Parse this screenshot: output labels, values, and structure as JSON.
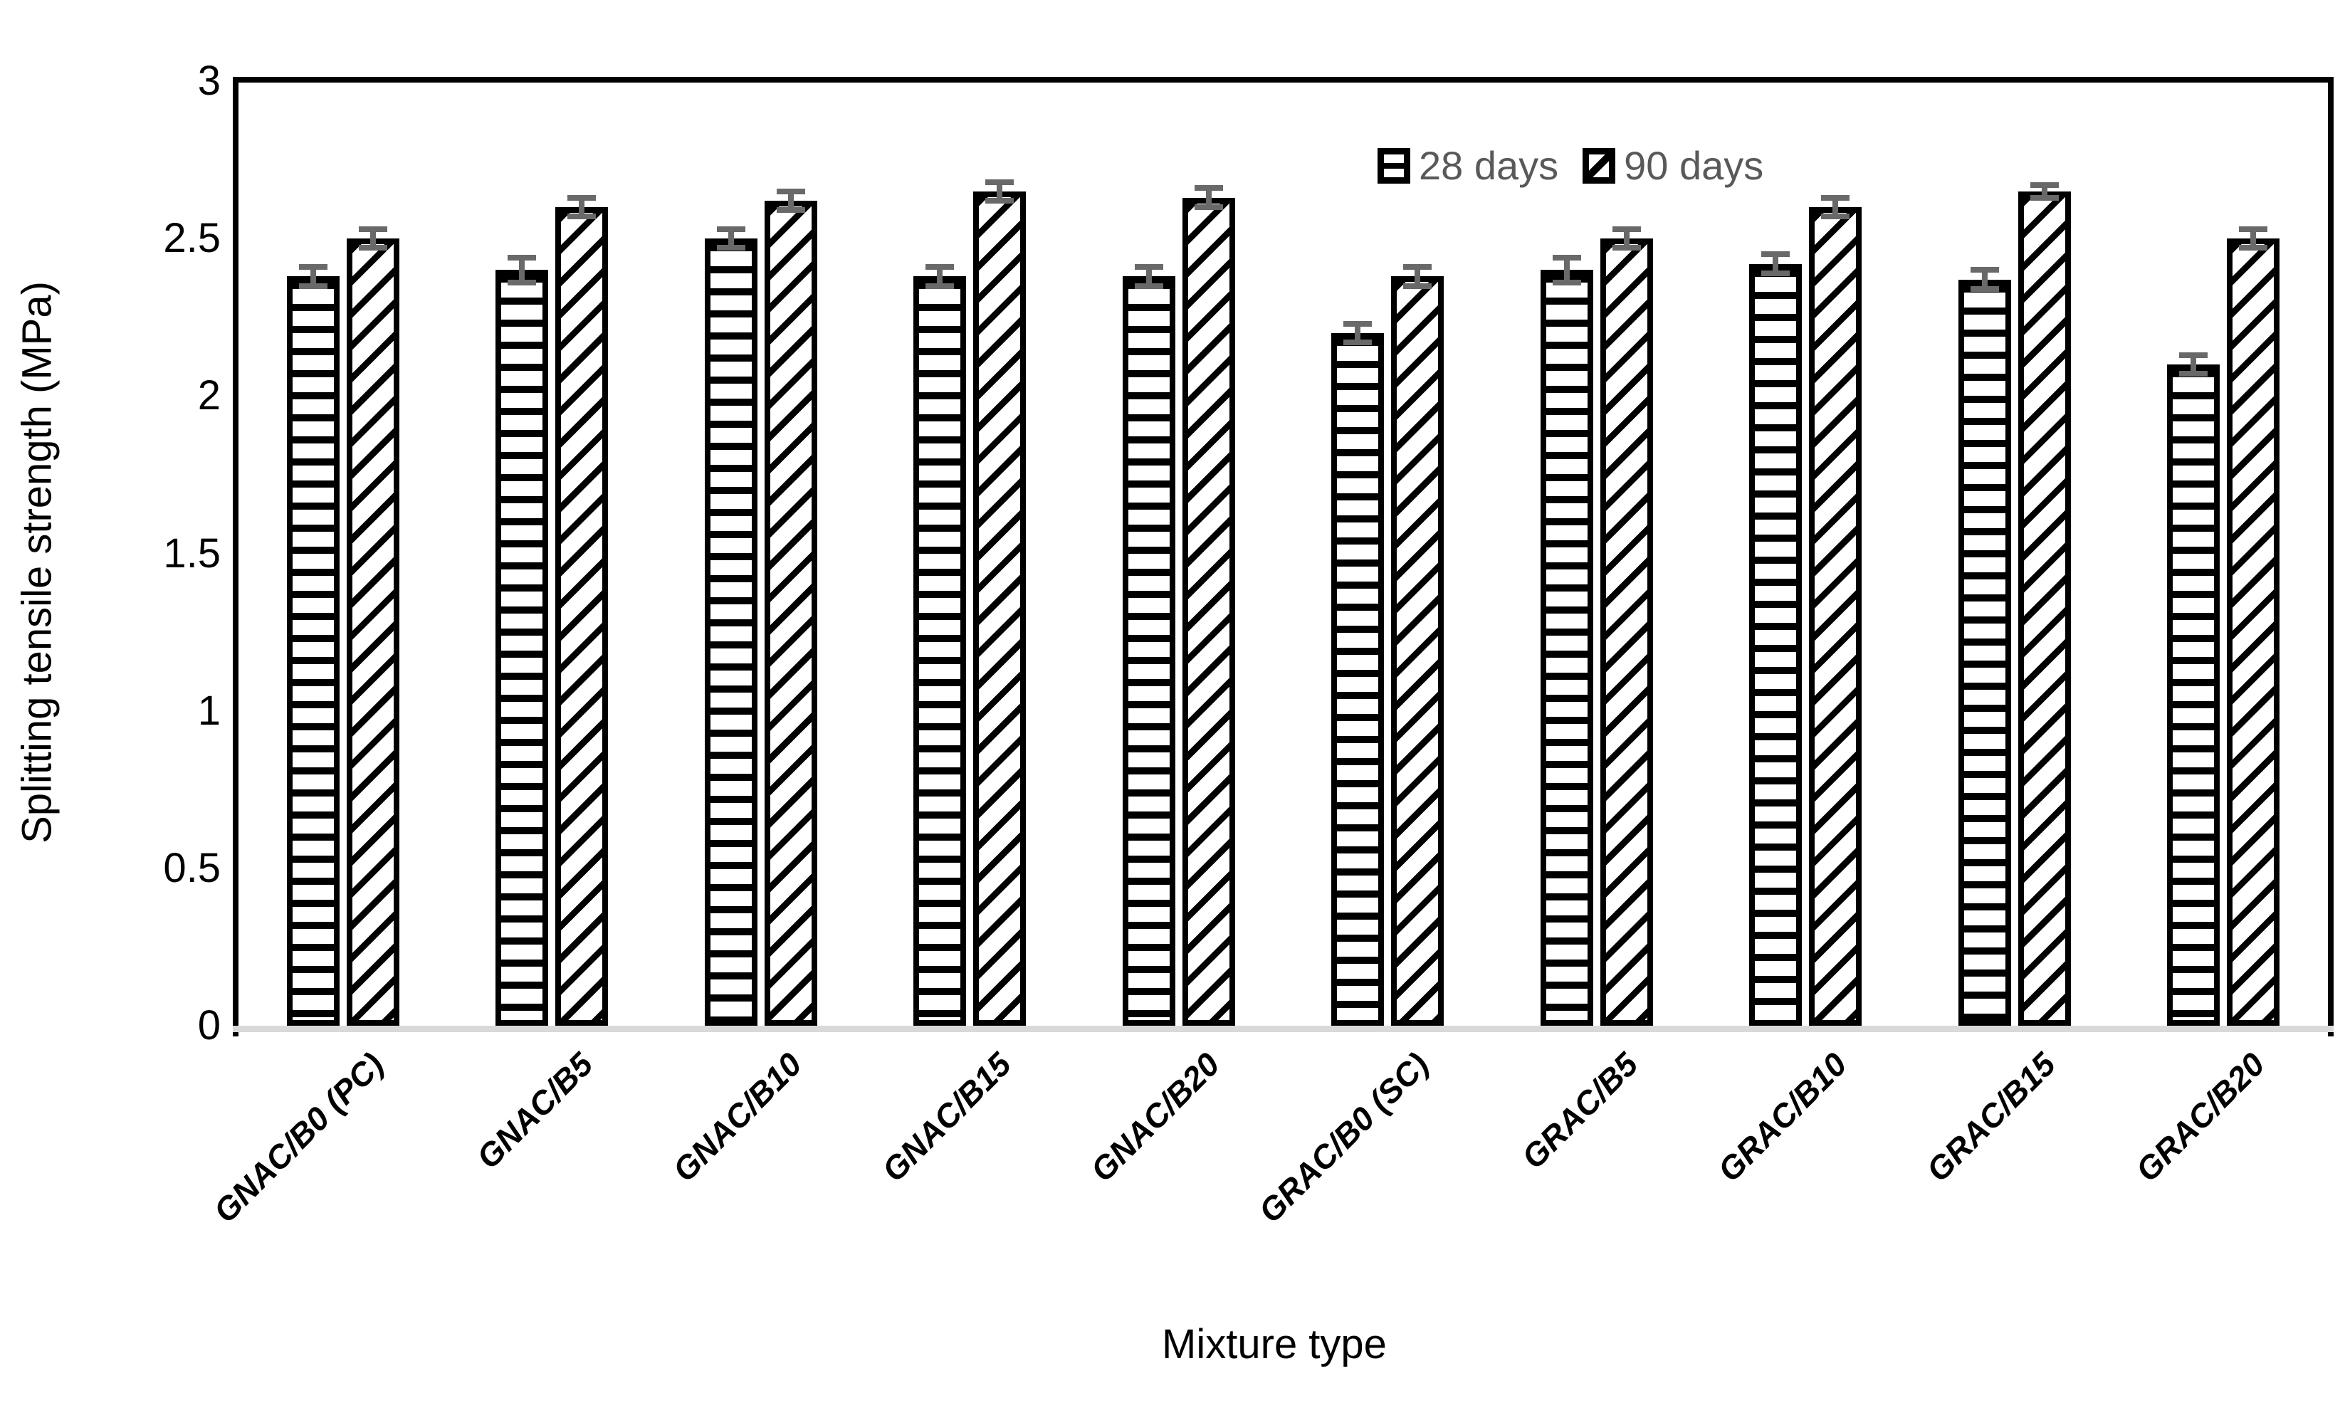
{
  "chart_data": {
    "type": "bar",
    "title": "",
    "xlabel": "Mixture type",
    "ylabel": "Splitting tensile strength (MPa)",
    "categories": [
      "GNAC/B0 (PC)",
      "GNAC/B5",
      "GNAC/B10",
      "GNAC/B15",
      "GNAC/B20",
      "GRAC/B0 (SC)",
      "GRAC/B5",
      "GRAC/B10",
      "GRAC/B15",
      "GRAC/B20"
    ],
    "series": [
      {
        "name": "28 days",
        "pattern": "horizontal-stripes",
        "values": [
          2.38,
          2.4,
          2.5,
          2.38,
          2.38,
          2.2,
          2.4,
          2.42,
          2.37,
          2.1
        ],
        "errors": [
          0.03,
          0.04,
          0.03,
          0.03,
          0.03,
          0.03,
          0.04,
          0.03,
          0.03,
          0.03
        ]
      },
      {
        "name": "90 days",
        "pattern": "diagonal-stripes",
        "values": [
          2.5,
          2.6,
          2.62,
          2.65,
          2.63,
          2.38,
          2.5,
          2.6,
          2.65,
          2.5
        ],
        "errors": [
          0.03,
          0.03,
          0.03,
          0.03,
          0.03,
          0.03,
          0.03,
          0.03,
          0.02,
          0.03
        ]
      }
    ],
    "ylim": [
      0,
      3
    ],
    "yticks": [
      0,
      0.5,
      1,
      1.5,
      2,
      2.5,
      3
    ],
    "ytick_labels": [
      "0",
      "0.5",
      "1",
      "1.5",
      "2",
      "2.5",
      "3"
    ],
    "grid": false,
    "legend_position": "top-center-inside",
    "colors": {
      "bar_fill": "#ffffff",
      "bar_stroke": "#000000",
      "error_bar": "#696969",
      "legend_text": "#595959",
      "baseline": "#d9d9d9",
      "axis": "#000000",
      "text": "#000000"
    }
  }
}
